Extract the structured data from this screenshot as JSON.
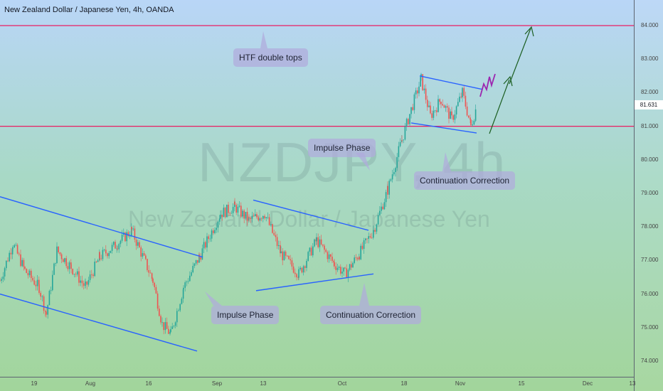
{
  "title": "New Zealand Dollar / Japanese Yen, 4h, OANDA",
  "watermark": {
    "symbol": "NZDJPY, 4h",
    "name": "New Zealand Dollar / Japanese Yen"
  },
  "callouts": {
    "htf": "HTF double tops",
    "impulse1": "Impulse Phase",
    "impulse2": "Impulse Phase",
    "cont1": "Continuation Correction",
    "cont2": "Continuation Correction"
  },
  "current_price": "81.631",
  "colors": {
    "bull": "#ef5350",
    "bear": "#26a69a",
    "trend": "#2962ff",
    "level": "#e91e63",
    "arrow": "#1b5e20",
    "projection": "#9c27b0"
  },
  "chart_data": {
    "type": "candlestick",
    "title": "New Zealand Dollar / Japanese Yen, 4h, OANDA",
    "ylim": [
      73.6,
      84.7
    ],
    "y_ticks": [
      "84.000",
      "83.000",
      "82.000",
      "81.000",
      "80.000",
      "79.000",
      "78.000",
      "77.000",
      "76.000",
      "75.000",
      "74.000"
    ],
    "x_ticks": [
      "19",
      "Aug",
      "16",
      "Sep",
      "13",
      "Oct",
      "18",
      "Nov",
      "15",
      "Dec",
      "13"
    ],
    "approx_path": [
      {
        "x": 0,
        "y": 76.4
      },
      {
        "x": 18,
        "y": 77.5
      },
      {
        "x": 35,
        "y": 76.7
      },
      {
        "x": 55,
        "y": 76.2
      },
      {
        "x": 65,
        "y": 75.4
      },
      {
        "x": 80,
        "y": 77.3
      },
      {
        "x": 100,
        "y": 76.8
      },
      {
        "x": 120,
        "y": 76.2
      },
      {
        "x": 140,
        "y": 77.1
      },
      {
        "x": 165,
        "y": 77.5
      },
      {
        "x": 185,
        "y": 77.9
      },
      {
        "x": 215,
        "y": 76.4
      },
      {
        "x": 228,
        "y": 75.1
      },
      {
        "x": 240,
        "y": 74.8
      },
      {
        "x": 258,
        "y": 76.2
      },
      {
        "x": 280,
        "y": 77.1
      },
      {
        "x": 310,
        "y": 78.4
      },
      {
        "x": 330,
        "y": 78.6
      },
      {
        "x": 350,
        "y": 78.2
      },
      {
        "x": 372,
        "y": 78.4
      },
      {
        "x": 395,
        "y": 77.2
      },
      {
        "x": 420,
        "y": 76.6
      },
      {
        "x": 445,
        "y": 77.6
      },
      {
        "x": 470,
        "y": 76.9
      },
      {
        "x": 485,
        "y": 76.6
      },
      {
        "x": 505,
        "y": 77.2
      },
      {
        "x": 525,
        "y": 77.9
      },
      {
        "x": 545,
        "y": 79.1
      },
      {
        "x": 565,
        "y": 80.6
      },
      {
        "x": 578,
        "y": 81.5
      },
      {
        "x": 592,
        "y": 82.4
      },
      {
        "x": 605,
        "y": 81.3
      },
      {
        "x": 620,
        "y": 81.8
      },
      {
        "x": 635,
        "y": 81.2
      },
      {
        "x": 650,
        "y": 82.0
      },
      {
        "x": 662,
        "y": 81.0
      },
      {
        "x": 670,
        "y": 81.6
      }
    ],
    "levels": [
      84.0,
      81.0
    ],
    "trendlines": [
      {
        "x1": 0,
        "y1": 78.9,
        "x2": 285,
        "y2": 77.1
      },
      {
        "x1": 0,
        "y1": 76.0,
        "x2": 277,
        "y2": 74.3
      },
      {
        "x1": 356,
        "y1": 78.8,
        "x2": 518,
        "y2": 77.9
      },
      {
        "x1": 360,
        "y1": 76.1,
        "x2": 525,
        "y2": 76.6
      },
      {
        "x1": 590,
        "y1": 82.5,
        "x2": 678,
        "y2": 82.1
      },
      {
        "x1": 578,
        "y1": 81.1,
        "x2": 670,
        "y2": 80.8
      }
    ]
  }
}
